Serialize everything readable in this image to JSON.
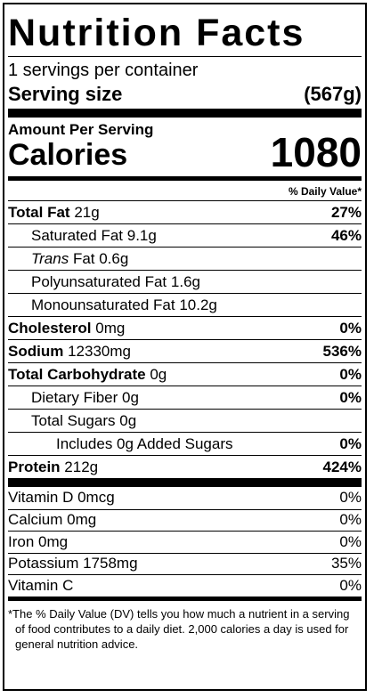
{
  "title": "Nutrition Facts",
  "servings_per_container": "1 servings per container",
  "serving_size": {
    "label": "Serving size",
    "value": "(567g)"
  },
  "amount_per_serving": "Amount Per Serving",
  "calories": {
    "label": "Calories",
    "value": "1080"
  },
  "daily_value_header": "% Daily Value*",
  "nutrients": [
    {
      "name": "Total Fat",
      "amount": "21g",
      "dv": "27%"
    },
    {
      "name": "Saturated Fat",
      "amount": "9.1g",
      "dv": "46%"
    },
    {
      "name": "Trans",
      "amount": "Fat 0.6g",
      "dv": ""
    },
    {
      "name": "Polyunsaturated Fat",
      "amount": "1.6g",
      "dv": ""
    },
    {
      "name": "Monounsaturated Fat",
      "amount": "10.2g",
      "dv": ""
    },
    {
      "name": "Cholesterol",
      "amount": "0mg",
      "dv": "0%"
    },
    {
      "name": "Sodium",
      "amount": "12330mg",
      "dv": "536%"
    },
    {
      "name": "Total Carbohydrate",
      "amount": "0g",
      "dv": "0%"
    },
    {
      "name": "Dietary Fiber",
      "amount": "0g",
      "dv": "0%"
    },
    {
      "name": "Total Sugars",
      "amount": "0g",
      "dv": ""
    },
    {
      "name": "Includes 0g Added Sugars",
      "amount": "",
      "dv": "0%"
    },
    {
      "name": "Protein",
      "amount": "212g",
      "dv": "424%"
    }
  ],
  "vitamins": [
    {
      "name": "Vitamin D 0mcg",
      "dv": "0%"
    },
    {
      "name": "Calcium 0mg",
      "dv": "0%"
    },
    {
      "name": "Iron 0mg",
      "dv": "0%"
    },
    {
      "name": "Potassium 1758mg",
      "dv": "35%"
    },
    {
      "name": "Vitamin C",
      "dv": "0%"
    }
  ],
  "footnote": "*The % Daily Value (DV) tells you how much a nutrient in a serving of food contributes to a daily diet. 2,000 calories a day is used for general nutrition advice."
}
